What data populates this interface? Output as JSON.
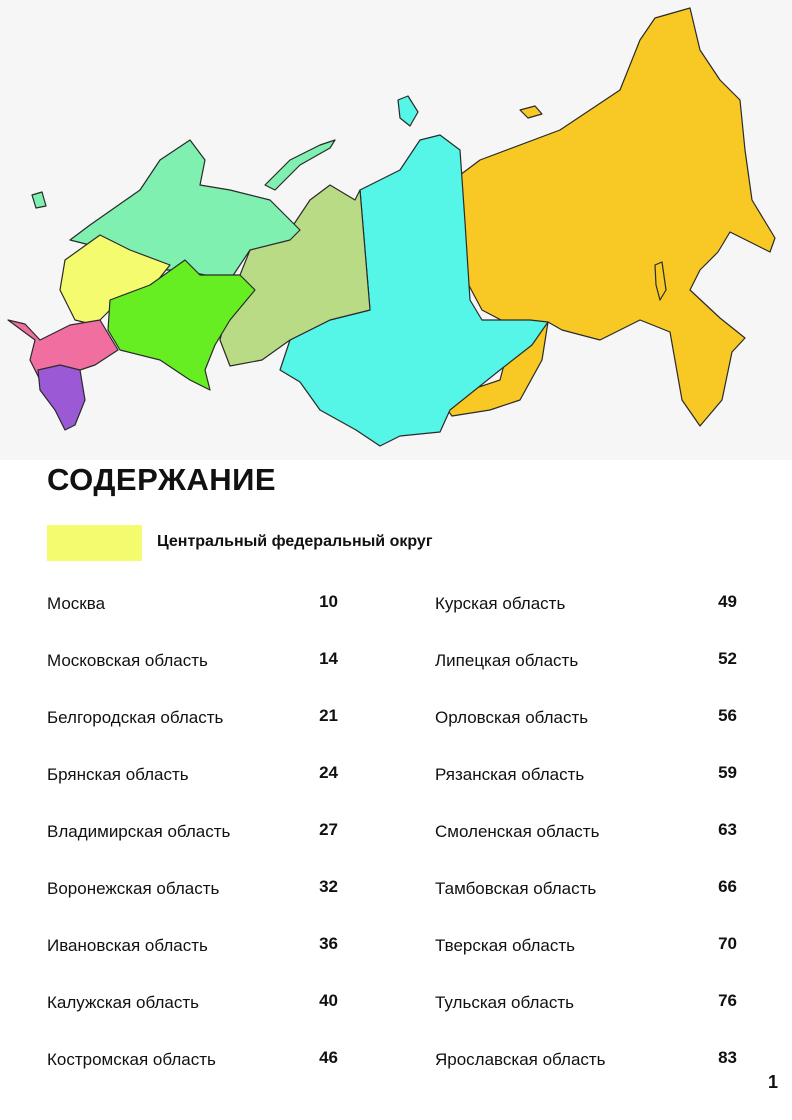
{
  "header": {
    "title": "СОДЕРЖАНИЕ"
  },
  "section": {
    "label": "Центральный федеральный округ"
  },
  "columns": [
    [
      {
        "name": "Москва",
        "page": 10
      },
      {
        "name": "Московская область",
        "page": 14
      },
      {
        "name": "Белгородская область",
        "page": 21
      },
      {
        "name": "Брянская область",
        "page": 24
      },
      {
        "name": "Владимирская область",
        "page": 27
      },
      {
        "name": "Воронежская область",
        "page": 32
      },
      {
        "name": "Ивановская область",
        "page": 36
      },
      {
        "name": "Калужская область",
        "page": 40
      },
      {
        "name": "Костромская область",
        "page": 46
      }
    ],
    [
      {
        "name": "Курская область",
        "page": 49
      },
      {
        "name": "Липецкая область",
        "page": 52
      },
      {
        "name": "Орловская область",
        "page": 56
      },
      {
        "name": "Рязанская область",
        "page": 59
      },
      {
        "name": "Смоленская область",
        "page": 63
      },
      {
        "name": "Тамбовская область",
        "page": 66
      },
      {
        "name": "Тверская область",
        "page": 70
      },
      {
        "name": "Тульская область",
        "page": 76
      },
      {
        "name": "Ярославская область",
        "page": 83
      }
    ]
  ],
  "page_number": 1
}
